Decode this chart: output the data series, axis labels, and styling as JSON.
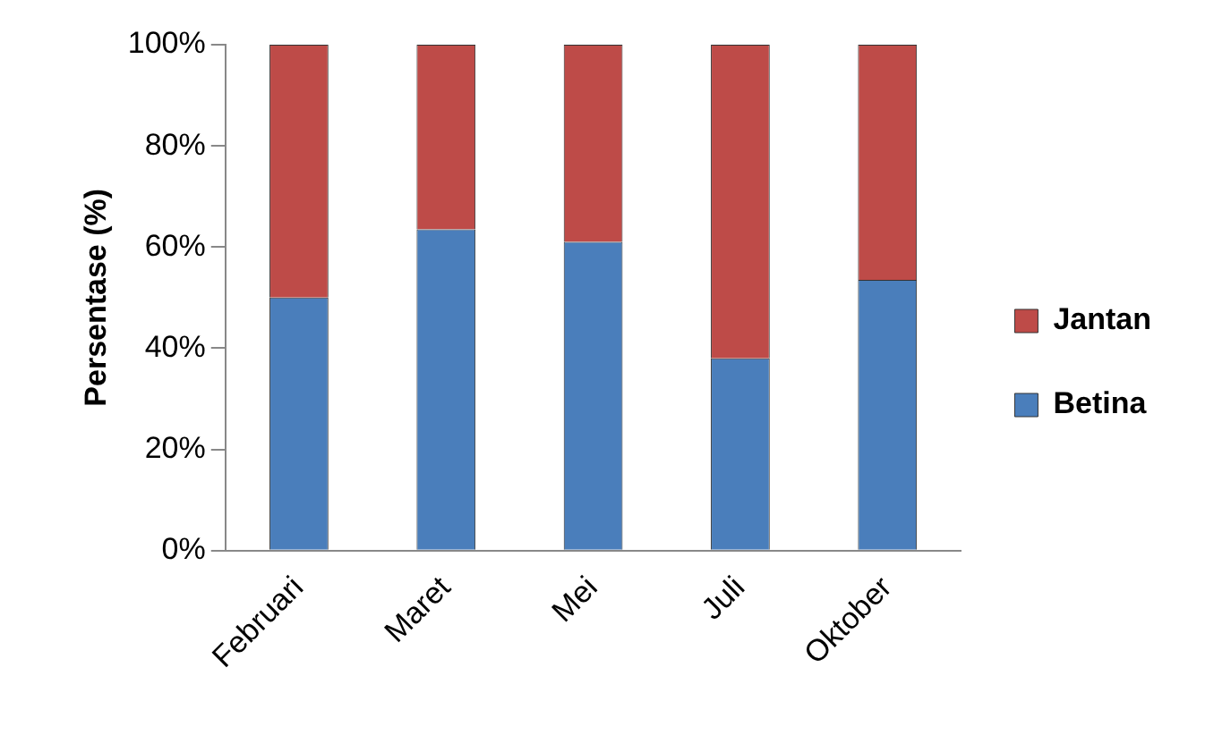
{
  "chart_data": {
    "type": "bar",
    "stacked": true,
    "ylabel": "Persentase (%)",
    "categories": [
      "Februari",
      "Maret",
      "Mei",
      "Juli",
      "Oktober"
    ],
    "series": [
      {
        "name": "Betina",
        "color": "#4a7ebb",
        "values": [
          50,
          63.5,
          61,
          38,
          53.5
        ]
      },
      {
        "name": "Jantan",
        "color": "#be4b48",
        "values": [
          50,
          36.5,
          39,
          62,
          46.5
        ]
      }
    ],
    "ylim": [
      0,
      100
    ],
    "yticks": [
      {
        "value": 0,
        "label": "0%"
      },
      {
        "value": 20,
        "label": "20%"
      },
      {
        "value": 40,
        "label": "40%"
      },
      {
        "value": 60,
        "label": "60%"
      },
      {
        "value": 80,
        "label": "80%"
      },
      {
        "value": 100,
        "label": "100%"
      }
    ],
    "grid": false,
    "legend": "right"
  }
}
